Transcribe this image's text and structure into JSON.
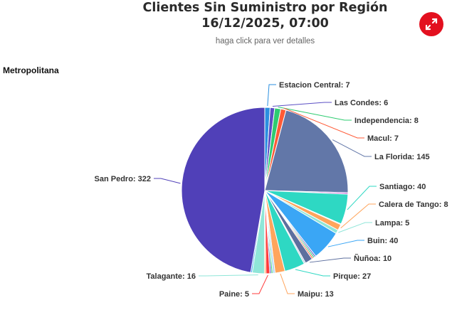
{
  "header": {
    "title_line1": "Clientes Sin Suministro por Región",
    "title_line2": "16/12/2025, 07:00",
    "subtitle": "haga click para ver detalles",
    "expand_icon": "expand-arrows-icon",
    "accent_color": "#e3101f"
  },
  "chart_data": {
    "type": "pie",
    "title": "Metropolitana",
    "start": "top, clockwise",
    "slices": [
      {
        "name": "Estacion Central",
        "value": 7,
        "color": "#2b8fe0"
      },
      {
        "name": "Las Condes",
        "value": 6,
        "color": "#5b4fc4"
      },
      {
        "name": "Independencia",
        "value": 8,
        "color": "#2ecc71"
      },
      {
        "name": "Macul",
        "value": 7,
        "color": "#ff5a36"
      },
      {
        "name": "La Florida",
        "value": 145,
        "color": "#6277a8"
      },
      {
        "name": "",
        "value": 2,
        "color": "#c04fd6"
      },
      {
        "name": "Santiago",
        "value": 40,
        "color": "#2ed8c3"
      },
      {
        "name": "",
        "value": 1,
        "color": "#ff3b3b"
      },
      {
        "name": "Calera de Tango",
        "value": 8,
        "color": "#ffa55c"
      },
      {
        "name": "Lampa",
        "value": 5,
        "color": "#8fe6d8"
      },
      {
        "name": "Buin",
        "value": 40,
        "color": "#3aa6f5"
      },
      {
        "name": "",
        "value": 2,
        "color": "#5b4fc4"
      },
      {
        "name": "",
        "value": 2,
        "color": "#2ecc71"
      },
      {
        "name": "",
        "value": 2,
        "color": "#ff5a36"
      },
      {
        "name": "Ñuñoa",
        "value": 10,
        "color": "#5d6f9e"
      },
      {
        "name": "",
        "value": 2,
        "color": "#b0c4de"
      },
      {
        "name": "Pirque",
        "value": 27,
        "color": "#2ed8c3"
      },
      {
        "name": "Maipu",
        "value": 13,
        "color": "#ffa55c"
      },
      {
        "name": "",
        "value": 3,
        "color": "#b0d8f5"
      },
      {
        "name": "",
        "value": 2,
        "color": "#2ecc71"
      },
      {
        "name": "",
        "value": 2,
        "color": "#5b4fc4"
      },
      {
        "name": "Paine",
        "value": 5,
        "color": "#ff3b3b"
      },
      {
        "name": "",
        "value": 2,
        "color": "#ffa55c"
      },
      {
        "name": "Talagante",
        "value": 16,
        "color": "#8fe6d8"
      },
      {
        "name": "",
        "value": 2,
        "color": "#3aa6f5"
      },
      {
        "name": "San Pedro",
        "value": 322,
        "color": "#5040b8"
      }
    ]
  }
}
